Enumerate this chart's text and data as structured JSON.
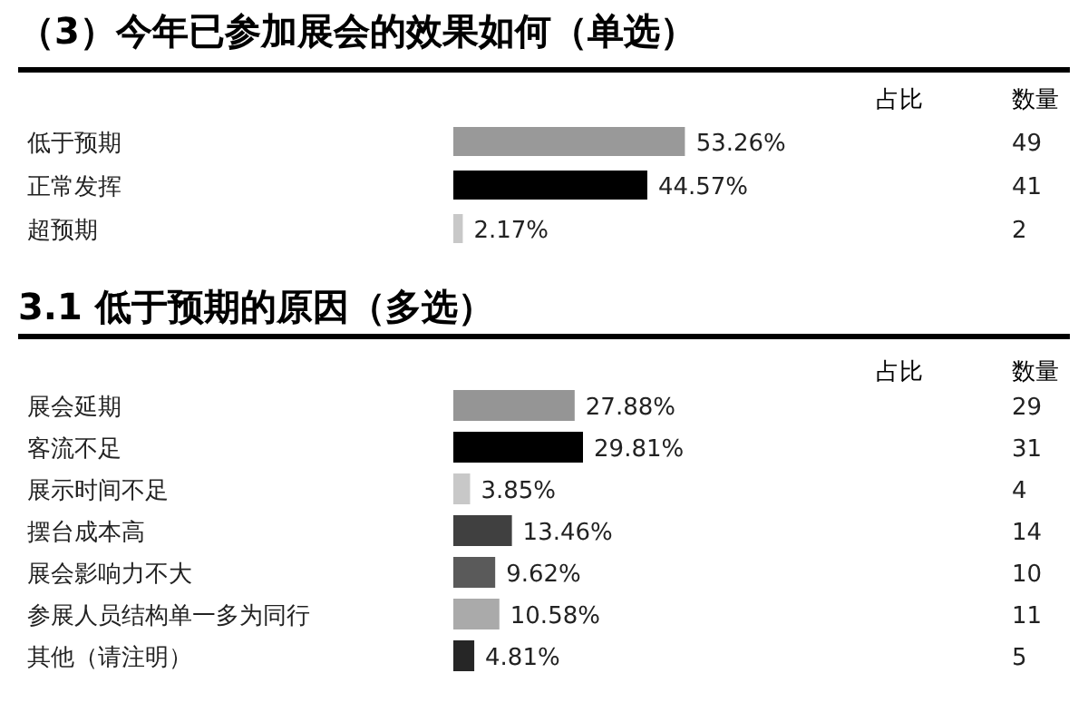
{
  "chart_data": [
    {
      "type": "bar",
      "orientation": "horizontal",
      "title": "（3）今年已参加展会的效果如何（单选）",
      "categories": [
        "低于预期",
        "正常发挥",
        "超预期"
      ],
      "tick_labels": "y",
      "series": [
        {
          "name": "占比",
          "values": [
            53.26,
            44.57,
            2.17
          ],
          "colors": [
            "#999999",
            "#000000",
            "#c8c8c8"
          ],
          "value_labels": [
            "53.26%",
            "44.57%",
            "2.17%"
          ]
        }
      ],
      "annotations": [
        "数量",
        "49",
        "41",
        "2"
      ]
    },
    {
      "type": "bar",
      "orientation": "horizontal",
      "title": "3.1 低于预期的原因（多选）",
      "categories": [
        "展会延期",
        "客流不足",
        "展示时间不足",
        "摆台成本高",
        "展会影响力不大",
        "参展人员结构单一多为同行",
        "其他（请注明）"
      ],
      "tick_labels": "y",
      "series": [
        {
          "name": "占比",
          "values": [
            27.88,
            29.81,
            3.85,
            13.46,
            9.62,
            10.58,
            4.81
          ],
          "colors": [
            "#959595",
            "#000000",
            "#c8c8c8",
            "#404040",
            "#5a5a5a",
            "#aaaaaa",
            "#262626"
          ],
          "value_labels": [
            "27.88%",
            "29.81%",
            "3.85%",
            "13.46%",
            "9.62%",
            "10.58%",
            "4.81%"
          ]
        }
      ],
      "annotations": [
        "数量",
        "29",
        "31",
        "4",
        "14",
        "10",
        "11",
        "5"
      ]
    }
  ]
}
